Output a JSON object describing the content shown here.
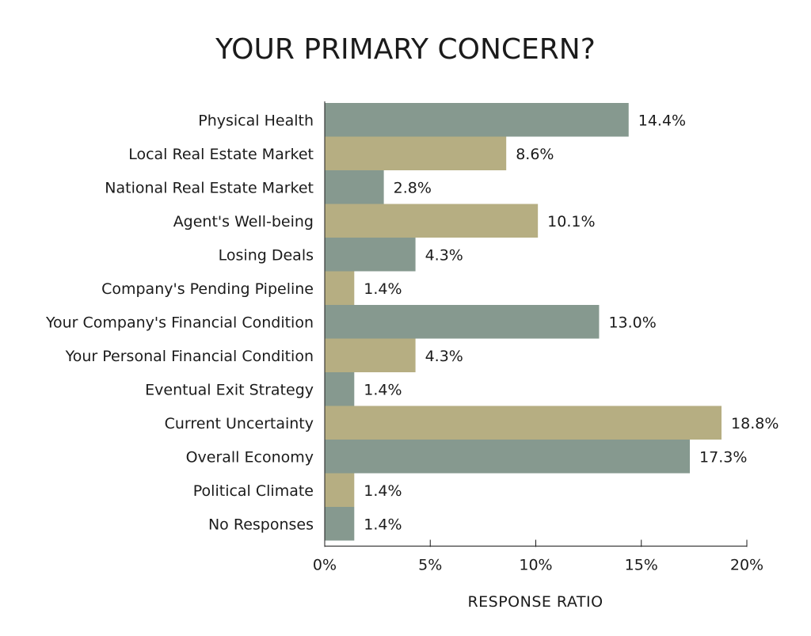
{
  "chart_data": {
    "type": "bar",
    "orientation": "horizontal",
    "title": "YOUR PRIMARY CONCERN?",
    "xlabel": "RESPONSE RATIO",
    "ylabel": "",
    "xlim": [
      0,
      20
    ],
    "x_ticks": [
      "0%",
      "5%",
      "10%",
      "15%",
      "20%"
    ],
    "grid": false,
    "categories": [
      "Physical Health",
      "Local Real Estate Market",
      "National Real Estate Market",
      "Agent's Well-being",
      "Losing Deals",
      "Company's Pending Pipeline",
      "Your Company's Financial Condition",
      "Your Personal Financial Condition",
      "Eventual Exit Strategy",
      "Current Uncertainty",
      "Overall Economy",
      "Political Climate",
      "No Responses"
    ],
    "values": [
      14.4,
      8.6,
      2.8,
      10.1,
      4.3,
      1.4,
      13.0,
      4.3,
      1.4,
      18.8,
      17.3,
      1.4,
      1.4
    ],
    "value_labels": [
      "14.4%",
      "8.6%",
      "2.8%",
      "10.1%",
      "4.3%",
      "1.4%",
      "13.0%",
      "4.3%",
      "1.4%",
      "18.8%",
      "17.3%",
      "1.4%",
      "1.4%"
    ],
    "bar_colors": [
      "#86998f",
      "#b6ae82"
    ]
  }
}
